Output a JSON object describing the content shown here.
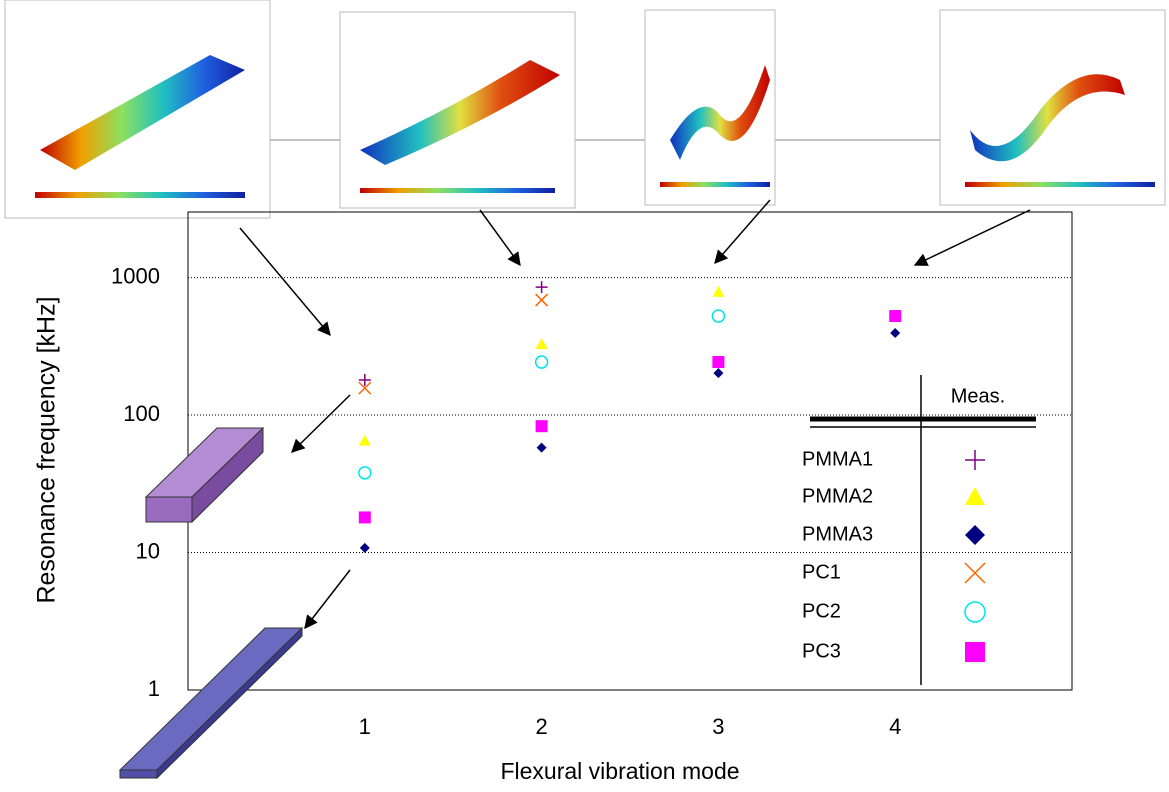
{
  "chart_data": {
    "type": "scatter",
    "x_label": "Flexural vibration mode",
    "y_label": "Resonance frequency [kHz]",
    "x": [
      1,
      2,
      3,
      4
    ],
    "xlim": [
      0,
      5
    ],
    "xticks": [
      1,
      2,
      3,
      4
    ],
    "ylim": [
      1,
      3000
    ],
    "yticks": [
      1,
      10,
      100,
      1000
    ],
    "log_y": true,
    "grid": true,
    "legend_title": "Meas.",
    "legend_position": "lower right",
    "series": [
      {
        "name": "PMMA1",
        "color": "#800080",
        "marker": "plus",
        "values": [
          180,
          853,
          null,
          null
        ]
      },
      {
        "name": "PMMA2",
        "color": "#ffff00",
        "marker": "triangle",
        "values": [
          65,
          328,
          785,
          null
        ]
      },
      {
        "name": "PMMA3",
        "color": "#000080",
        "marker": "diamond",
        "values": [
          10.8,
          58,
          202,
          395
        ]
      },
      {
        "name": "PC1",
        "color": "#ff6600",
        "marker": "x",
        "values": [
          157,
          686,
          null,
          null
        ]
      },
      {
        "name": "PC2",
        "color": "#00e5ee",
        "marker": "circle",
        "values": [
          38,
          243,
          525,
          null
        ]
      },
      {
        "name": "PC3",
        "color": "#ff00ff",
        "marker": "square",
        "values": [
          18,
          83,
          243,
          525
        ]
      }
    ]
  }
}
